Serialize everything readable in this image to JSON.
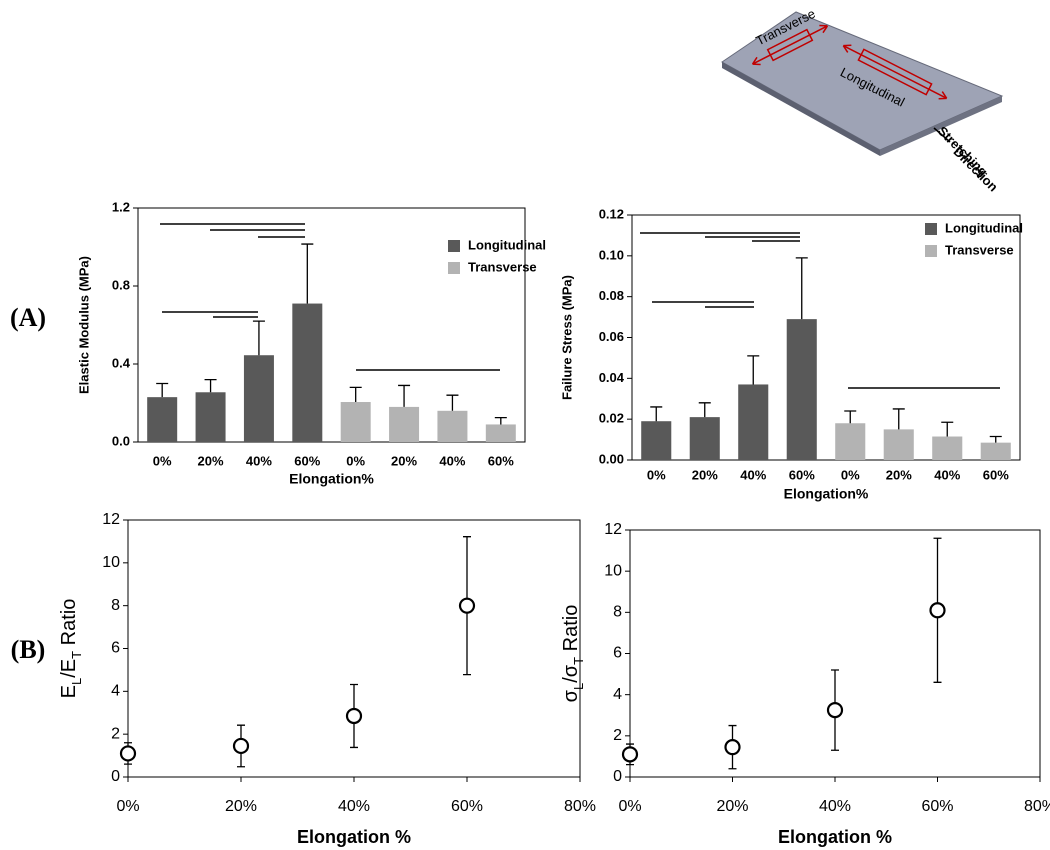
{
  "panels": [
    "(A)",
    "(B)"
  ],
  "diagram": {
    "labels": [
      "Transverse",
      "Longitudinal",
      "Stretching",
      "Direction"
    ]
  },
  "chart_data": [
    {
      "type": "bar",
      "ylabel": "Elastic Modulus (MPa)",
      "xlabel": "Elongation%",
      "categories": [
        "0%",
        "20%",
        "40%",
        "60%",
        "0%",
        "20%",
        "40%",
        "60%"
      ],
      "series": [
        {
          "name": "Longitudinal",
          "color": "#595959",
          "values": [
            0.23,
            0.255,
            0.445,
            0.71,
            null,
            null,
            null,
            null
          ],
          "errors": [
            0.07,
            0.065,
            0.175,
            0.305,
            null,
            null,
            null,
            null
          ]
        },
        {
          "name": "Transverse",
          "color": "#b3b3b3",
          "values": [
            null,
            null,
            null,
            null,
            0.205,
            0.18,
            0.16,
            0.09
          ],
          "errors": [
            null,
            null,
            null,
            null,
            0.075,
            0.11,
            0.08,
            0.035
          ]
        }
      ],
      "ylim": [
        0,
        1.2
      ],
      "yticks": [
        {
          "value": 0,
          "label": "0.0"
        },
        0.4,
        0.8,
        1.2
      ],
      "legend": "upper right"
    },
    {
      "type": "bar",
      "ylabel": "Failure Stress (MPa)",
      "xlabel": "Elongation%",
      "categories": [
        "0%",
        "20%",
        "40%",
        "60%",
        "0%",
        "20%",
        "40%",
        "60%"
      ],
      "series": [
        {
          "name": "Longitudinal",
          "color": "#595959",
          "values": [
            0.019,
            0.021,
            0.037,
            0.069,
            null,
            null,
            null,
            null
          ],
          "errors": [
            0.007,
            0.007,
            0.014,
            0.03,
            null,
            null,
            null,
            null
          ]
        },
        {
          "name": "Transverse",
          "color": "#b3b3b3",
          "values": [
            null,
            null,
            null,
            null,
            0.018,
            0.015,
            0.0115,
            0.0085
          ],
          "errors": [
            null,
            null,
            null,
            null,
            0.006,
            0.01,
            0.007,
            0.003
          ]
        }
      ],
      "ylim": [
        0,
        0.12
      ],
      "yticks": [
        {
          "value": 0,
          "label": "0.00"
        },
        {
          "value": 0.02,
          "label": "0.02"
        },
        {
          "value": 0.04,
          "label": "0.04"
        },
        {
          "value": 0.06,
          "label": "0.06"
        },
        {
          "value": 0.08,
          "label": "0.08"
        },
        {
          "value": 0.1,
          "label": "0.10"
        },
        {
          "value": 0.12,
          "label": "0.12"
        }
      ],
      "legend": "upper right"
    },
    {
      "type": "scatter",
      "ylabel": [
        "E",
        "L",
        "/E",
        "T",
        " Ratio"
      ],
      "xlabel": "Elongation %",
      "x": [
        0,
        20,
        40,
        60
      ],
      "values": [
        1.1,
        1.45,
        2.85,
        8.0
      ],
      "errors": [
        0.5,
        0.97,
        1.47,
        3.22
      ],
      "xlim": [
        0,
        80
      ],
      "xticks": [
        {
          "value": 0,
          "label": "0%"
        },
        {
          "value": 20,
          "label": "20%"
        },
        {
          "value": 40,
          "label": "40%"
        },
        {
          "value": 60,
          "label": "60%"
        },
        {
          "value": 80,
          "label": "80%"
        }
      ],
      "ylim": [
        0,
        12
      ],
      "yticks": [
        0,
        2,
        4,
        6,
        8,
        10,
        12
      ],
      "color": "#000000"
    },
    {
      "type": "scatter",
      "ylabel": [
        "σ",
        "L",
        "/σ",
        "T",
        " Ratio"
      ],
      "xlabel": "Elongation %",
      "x": [
        0,
        20,
        40,
        60
      ],
      "values": [
        1.1,
        1.45,
        3.25,
        8.1
      ],
      "errors": [
        0.5,
        1.05,
        1.95,
        3.5
      ],
      "xlim": [
        0,
        80
      ],
      "xticks": [
        {
          "value": 0,
          "label": "0%"
        },
        {
          "value": 20,
          "label": "20%"
        },
        {
          "value": 40,
          "label": "40%"
        },
        {
          "value": 60,
          "label": "60%"
        },
        {
          "value": 80,
          "label": "80%"
        }
      ],
      "ylim": [
        0,
        12
      ],
      "yticks": [
        0,
        2,
        4,
        6,
        8,
        10,
        12
      ],
      "color": "#000000"
    }
  ]
}
